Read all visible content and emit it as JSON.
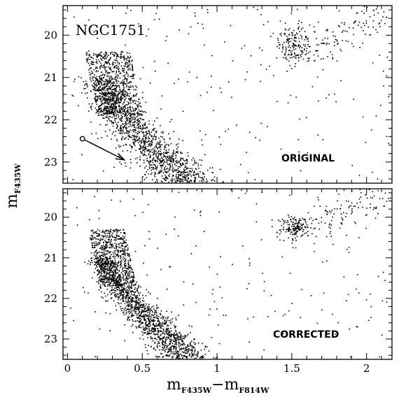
{
  "figure": {
    "object_name": "NGC1751",
    "xlabel_main_1": "m",
    "xlabel_sub_1": "F435W",
    "xlabel_dash": "−",
    "xlabel_main_2": "m",
    "xlabel_sub_2": "F814W",
    "ylabel_main": "m",
    "ylabel_sub": "F435W"
  },
  "colors": {
    "points": "#000000",
    "frame": "#000000",
    "background": "#ffffff"
  },
  "chart_data": [
    {
      "type": "scatter",
      "panel_label": "ORIGINAL",
      "xlim": [
        -0.03,
        2.17
      ],
      "ylim": [
        23.5,
        19.3
      ],
      "xticks": [
        0,
        0.5,
        1,
        1.5,
        2
      ],
      "xticklabels": [],
      "yticks": [
        20,
        21,
        22,
        23
      ],
      "yticklabels": [
        "20",
        "21",
        "22",
        "23"
      ],
      "annotations": [
        {
          "type": "reddening-vector",
          "from": [
            0.1,
            22.45
          ],
          "to": [
            0.38,
            22.95
          ]
        }
      ],
      "populations": [
        {
          "name": "upper main sequence",
          "count": 700,
          "x": [
            0.12,
            0.42
          ],
          "y": [
            20.4,
            21.9
          ],
          "shape": "band"
        },
        {
          "name": "main sequence",
          "count": 1400,
          "ridge": [
            [
              0.22,
              21.0
            ],
            [
              0.3,
              21.6
            ],
            [
              0.42,
              22.1
            ],
            [
              0.55,
              22.6
            ],
            [
              0.68,
              23.0
            ],
            [
              0.78,
              23.5
            ]
          ],
          "width": 0.09
        },
        {
          "name": "red clump",
          "count": 160,
          "center": [
            1.52,
            20.2
          ],
          "spread": [
            0.06,
            0.22
          ]
        },
        {
          "name": "red giant branch",
          "count": 110,
          "x": [
            1.55,
            2.15
          ],
          "y": [
            19.4,
            20.6
          ],
          "shape": "branch"
        },
        {
          "name": "field",
          "count": 220,
          "x": [
            0.0,
            2.15
          ],
          "y": [
            19.3,
            23.5
          ],
          "shape": "uniform"
        }
      ]
    },
    {
      "type": "scatter",
      "panel_label": "CORRECTED",
      "xlim": [
        -0.03,
        2.17
      ],
      "ylim": [
        23.5,
        19.3
      ],
      "xticks": [
        0,
        0.5,
        1,
        1.5,
        2
      ],
      "xticklabels": [
        "0",
        "0.5",
        "1",
        "1.5",
        "2"
      ],
      "yticks": [
        20,
        21,
        22,
        23
      ],
      "yticklabels": [
        "20",
        "21",
        "22",
        "23"
      ],
      "annotations": [],
      "populations": [
        {
          "name": "upper main sequence",
          "count": 650,
          "x": [
            0.14,
            0.38
          ],
          "y": [
            20.3,
            21.7
          ],
          "shape": "band"
        },
        {
          "name": "main sequence",
          "count": 1500,
          "ridge": [
            [
              0.22,
              21.0
            ],
            [
              0.3,
              21.5
            ],
            [
              0.42,
              22.05
            ],
            [
              0.55,
              22.55
            ],
            [
              0.68,
              23.0
            ],
            [
              0.78,
              23.5
            ]
          ],
          "width": 0.07
        },
        {
          "name": "red clump",
          "count": 150,
          "center": [
            1.53,
            20.25
          ],
          "spread": [
            0.05,
            0.15
          ]
        },
        {
          "name": "red giant branch",
          "count": 110,
          "x": [
            1.6,
            2.15
          ],
          "y": [
            19.3,
            20.4
          ],
          "shape": "branch"
        },
        {
          "name": "field",
          "count": 200,
          "x": [
            0.0,
            2.15
          ],
          "y": [
            19.3,
            23.5
          ],
          "shape": "uniform"
        }
      ]
    }
  ]
}
